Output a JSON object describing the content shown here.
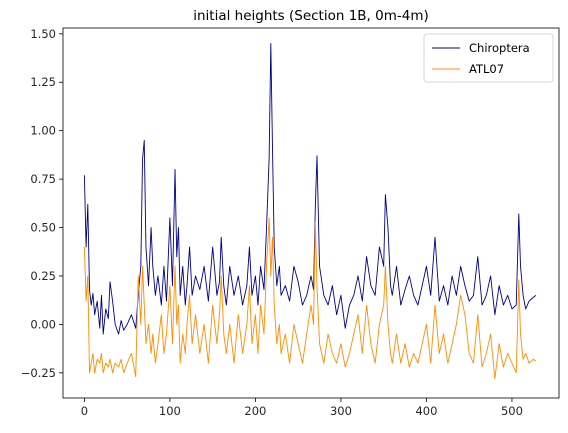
{
  "chart_data": {
    "type": "line",
    "title": "initial heights (Section 1B, 0m-4m)",
    "xlabel": "",
    "ylabel": "",
    "xlim": [
      -25,
      555
    ],
    "ylim": [
      -0.38,
      1.53
    ],
    "xticks": [
      0,
      100,
      200,
      300,
      400,
      500
    ],
    "yticks": [
      -0.25,
      0.0,
      0.25,
      0.5,
      0.75,
      1.0,
      1.25,
      1.5
    ],
    "ytick_labels": [
      "−0.25",
      "0.00",
      "0.25",
      "0.50",
      "0.75",
      "1.00",
      "1.25",
      "1.50"
    ],
    "grid": false,
    "legend": "top-right",
    "series": [
      {
        "name": "Chiroptera",
        "color": "#00008b",
        "x": [
          0,
          2,
          4,
          6,
          8,
          10,
          12,
          15,
          18,
          20,
          22,
          25,
          28,
          30,
          33,
          36,
          40,
          43,
          46,
          50,
          55,
          60,
          63,
          66,
          68,
          70,
          72,
          75,
          78,
          80,
          83,
          86,
          90,
          93,
          96,
          100,
          103,
          106,
          108,
          110,
          112,
          115,
          118,
          120,
          123,
          126,
          130,
          135,
          140,
          145,
          150,
          155,
          158,
          160,
          163,
          166,
          170,
          175,
          180,
          185,
          190,
          193,
          196,
          200,
          203,
          206,
          210,
          213,
          216,
          218,
          220,
          222,
          225,
          228,
          230,
          235,
          240,
          245,
          250,
          255,
          260,
          265,
          268,
          270,
          272,
          275,
          280,
          285,
          290,
          295,
          300,
          305,
          310,
          315,
          320,
          325,
          330,
          335,
          340,
          345,
          350,
          352,
          355,
          358,
          360,
          365,
          370,
          375,
          380,
          385,
          390,
          395,
          400,
          405,
          410,
          415,
          420,
          425,
          430,
          435,
          440,
          445,
          450,
          455,
          460,
          465,
          470,
          475,
          480,
          485,
          490,
          495,
          500,
          505,
          508,
          510,
          513,
          516,
          520,
          525,
          528
        ],
        "y": [
          0.77,
          0.4,
          0.62,
          0.18,
          0.1,
          0.16,
          0.05,
          0.12,
          -0.02,
          0.15,
          -0.05,
          0.08,
          0.03,
          0.22,
          0.12,
          0.0,
          -0.05,
          0.02,
          -0.03,
          0.0,
          0.05,
          -0.02,
          0.15,
          0.3,
          0.85,
          0.95,
          0.4,
          0.2,
          0.5,
          0.3,
          0.15,
          0.25,
          0.1,
          0.3,
          0.12,
          0.55,
          0.2,
          0.8,
          0.35,
          0.5,
          0.15,
          0.3,
          0.1,
          0.2,
          0.4,
          0.15,
          0.25,
          0.18,
          0.3,
          0.12,
          0.4,
          0.15,
          0.22,
          0.45,
          0.2,
          0.1,
          0.3,
          0.15,
          0.25,
          0.1,
          0.2,
          0.4,
          0.15,
          0.25,
          0.1,
          0.3,
          0.18,
          0.5,
          0.85,
          1.45,
          0.9,
          0.4,
          0.2,
          0.3,
          0.15,
          0.2,
          0.12,
          0.3,
          0.22,
          0.1,
          0.15,
          0.25,
          0.18,
          0.6,
          0.87,
          0.3,
          0.15,
          0.1,
          0.2,
          0.05,
          0.15,
          -0.02,
          0.1,
          0.15,
          0.25,
          0.12,
          0.35,
          0.2,
          0.15,
          0.4,
          0.3,
          0.67,
          0.5,
          0.2,
          0.15,
          0.3,
          0.1,
          0.18,
          0.25,
          0.15,
          0.1,
          0.2,
          0.3,
          0.15,
          0.45,
          0.12,
          0.2,
          0.1,
          0.25,
          0.15,
          0.3,
          0.2,
          0.12,
          0.15,
          0.35,
          0.1,
          0.15,
          0.25,
          0.05,
          0.2,
          0.1,
          0.15,
          0.08,
          0.1,
          0.57,
          0.3,
          0.15,
          0.08,
          0.12,
          0.14,
          0.15
        ]
      },
      {
        "name": "ATL07",
        "color": "#ff8c00",
        "x": [
          0,
          2,
          4,
          6,
          8,
          10,
          12,
          15,
          18,
          20,
          22,
          25,
          28,
          30,
          33,
          36,
          40,
          43,
          46,
          50,
          55,
          60,
          63,
          66,
          68,
          70,
          72,
          75,
          78,
          80,
          83,
          86,
          90,
          93,
          96,
          100,
          103,
          106,
          108,
          110,
          112,
          115,
          118,
          120,
          123,
          126,
          130,
          135,
          140,
          145,
          150,
          155,
          158,
          160,
          163,
          166,
          170,
          175,
          180,
          185,
          190,
          193,
          196,
          200,
          203,
          206,
          210,
          213,
          216,
          218,
          220,
          222,
          225,
          228,
          230,
          235,
          240,
          245,
          250,
          255,
          260,
          265,
          268,
          270,
          272,
          275,
          280,
          285,
          290,
          295,
          300,
          305,
          310,
          315,
          320,
          325,
          330,
          335,
          340,
          345,
          350,
          352,
          355,
          358,
          360,
          365,
          370,
          375,
          380,
          385,
          390,
          395,
          400,
          405,
          410,
          415,
          420,
          425,
          430,
          435,
          440,
          445,
          450,
          455,
          460,
          465,
          470,
          475,
          480,
          485,
          490,
          495,
          500,
          505,
          508,
          510,
          513,
          516,
          520,
          525,
          528
        ],
        "y": [
          0.4,
          0.12,
          0.25,
          -0.25,
          -0.2,
          -0.15,
          -0.25,
          -0.18,
          -0.2,
          -0.15,
          -0.25,
          -0.2,
          -0.22,
          -0.18,
          -0.25,
          -0.2,
          -0.22,
          -0.18,
          -0.25,
          -0.2,
          -0.15,
          -0.27,
          0.25,
          0.0,
          0.3,
          0.1,
          -0.1,
          0.0,
          -0.15,
          -0.05,
          -0.2,
          -0.1,
          0.05,
          -0.15,
          -0.05,
          0.2,
          -0.1,
          0.3,
          0.0,
          0.1,
          -0.2,
          -0.05,
          -0.15,
          0.0,
          0.15,
          -0.1,
          0.05,
          -0.15,
          0.0,
          -0.2,
          0.1,
          -0.1,
          0.05,
          0.25,
          -0.05,
          -0.15,
          0.0,
          -0.2,
          0.05,
          -0.15,
          0.0,
          0.2,
          -0.1,
          0.05,
          -0.15,
          0.1,
          -0.05,
          0.3,
          0.55,
          0.25,
          0.45,
          0.1,
          -0.1,
          0.0,
          -0.15,
          -0.05,
          -0.2,
          0.0,
          -0.1,
          -0.2,
          -0.05,
          0.1,
          0.0,
          0.53,
          0.2,
          -0.1,
          -0.2,
          -0.05,
          -0.15,
          -0.2,
          -0.1,
          -0.22,
          -0.15,
          -0.05,
          0.05,
          -0.15,
          0.1,
          -0.1,
          -0.2,
          0.0,
          0.1,
          0.3,
          0.0,
          -0.15,
          -0.2,
          -0.05,
          -0.2,
          -0.1,
          -0.22,
          -0.15,
          -0.2,
          -0.1,
          0.0,
          -0.2,
          0.1,
          -0.15,
          -0.05,
          -0.2,
          -0.1,
          0.0,
          0.15,
          0.05,
          -0.15,
          -0.2,
          0.05,
          -0.22,
          -0.15,
          -0.05,
          -0.28,
          -0.1,
          -0.22,
          -0.15,
          -0.2,
          -0.25,
          0.23,
          -0.05,
          -0.18,
          -0.15,
          -0.2,
          -0.18,
          -0.19
        ]
      }
    ]
  }
}
